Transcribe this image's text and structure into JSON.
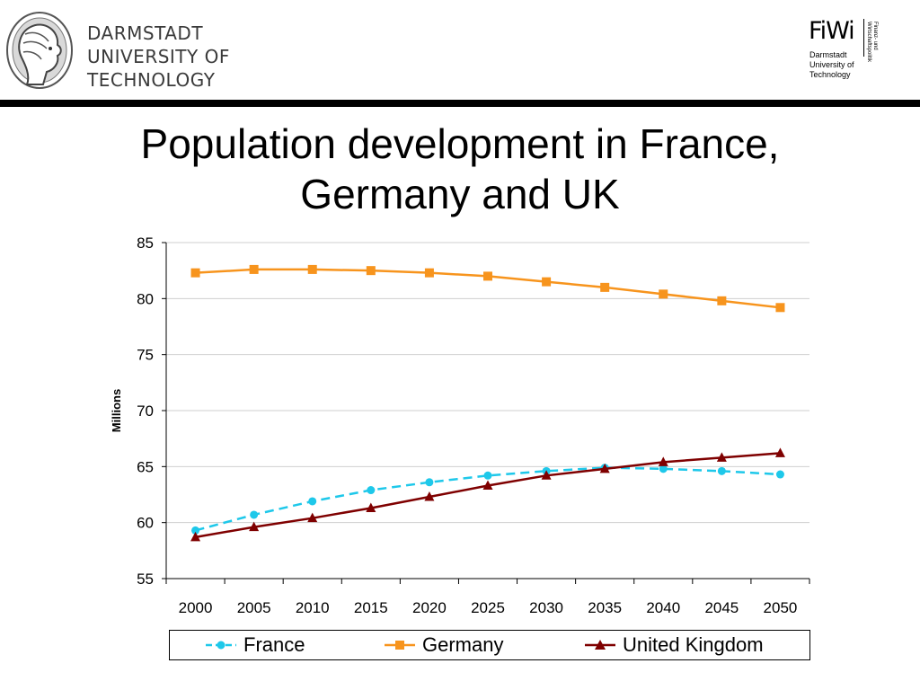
{
  "header": {
    "university_lines": [
      "DARMSTADT",
      "UNIVERSITY OF",
      "TECHNOLOGY"
    ],
    "fiwi": {
      "title": "FiWi",
      "subtitle_lines": [
        "Darmstadt",
        "University of",
        "Technology"
      ],
      "vertical_lines": [
        "Finanz- und",
        "Wirtschaftspolitik"
      ]
    }
  },
  "slide": {
    "title_lines": [
      "Population development in France,",
      "Germany and UK"
    ]
  },
  "colors": {
    "France": "#1ec8ea",
    "Germany": "#f7941d",
    "United Kingdom": "#7f0000",
    "header_bar": "#000000"
  },
  "chart_data": {
    "type": "line",
    "ylabel": "Millions",
    "xlabel": "",
    "ylim": [
      55,
      85
    ],
    "yticks": [
      55,
      60,
      65,
      70,
      75,
      80,
      85
    ],
    "grid": true,
    "legend_position": "bottom",
    "categories": [
      "2000",
      "2005",
      "2010",
      "2015",
      "2020",
      "2025",
      "2030",
      "2035",
      "2040",
      "2045",
      "2050"
    ],
    "series": [
      {
        "name": "France",
        "color": "#1ec8ea",
        "line_style": "dashed",
        "marker": "circle",
        "values": [
          59.3,
          60.7,
          61.9,
          62.9,
          63.6,
          64.2,
          64.6,
          64.9,
          64.8,
          64.6,
          64.3
        ]
      },
      {
        "name": "Germany",
        "color": "#f7941d",
        "line_style": "solid",
        "marker": "square",
        "values": [
          82.3,
          82.6,
          82.6,
          82.5,
          82.3,
          82.0,
          81.5,
          81.0,
          80.4,
          79.8,
          79.2
        ]
      },
      {
        "name": "United Kingdom",
        "color": "#7f0000",
        "line_style": "solid",
        "marker": "triangle",
        "values": [
          58.7,
          59.6,
          60.4,
          61.3,
          62.3,
          63.3,
          64.2,
          64.8,
          65.4,
          65.8,
          66.2
        ]
      }
    ]
  }
}
